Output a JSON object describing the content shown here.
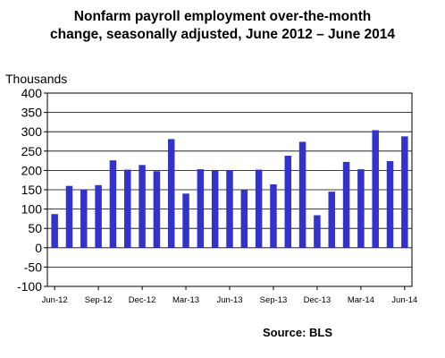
{
  "chart_data": {
    "type": "bar",
    "title_line1": "Nonfarm payroll employment over-the-month",
    "title_line2": "change, seasonally adjusted, June 2012 – June 2014",
    "ylabel": "Thousands",
    "source": "Source:  BLS",
    "ylim": [
      -100,
      400
    ],
    "yticks": [
      "400",
      "350",
      "300",
      "250",
      "200",
      "150",
      "100",
      "50",
      "0",
      "-50",
      "-100"
    ],
    "ytick_values": [
      400,
      350,
      300,
      250,
      200,
      150,
      100,
      50,
      0,
      -50,
      -100
    ],
    "xtick_labels": [
      {
        "index": 0,
        "label": "Jun-12"
      },
      {
        "index": 3,
        "label": "Sep-12"
      },
      {
        "index": 6,
        "label": "Dec-12"
      },
      {
        "index": 9,
        "label": "Mar-13"
      },
      {
        "index": 12,
        "label": "Jun-13"
      },
      {
        "index": 15,
        "label": "Sep-13"
      },
      {
        "index": 18,
        "label": "Dec-13"
      },
      {
        "index": 21,
        "label": "Mar-14"
      },
      {
        "index": 24,
        "label": "Jun-14"
      }
    ],
    "values": [
      87,
      160,
      150,
      162,
      226,
      202,
      214,
      198,
      281,
      140,
      203,
      199,
      201,
      149,
      202,
      164,
      238,
      274,
      84,
      145,
      222,
      203,
      304,
      224,
      288
    ],
    "bar_color": "#3333cc",
    "grid": true
  }
}
